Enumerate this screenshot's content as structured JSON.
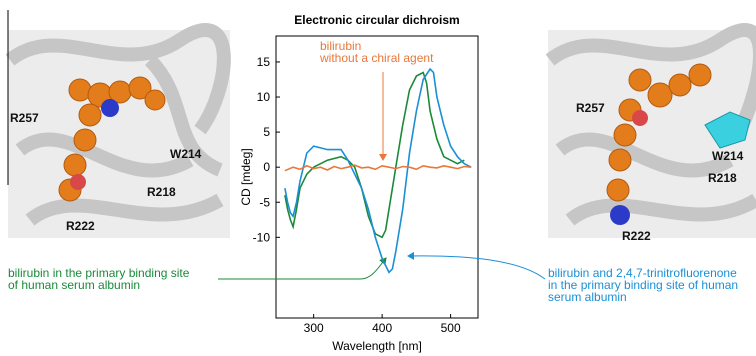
{
  "chart_data": {
    "type": "line",
    "title": "Electronic circular dichroism",
    "x_label": "Wavelength [nm]",
    "y_label": "CD [mdeg]",
    "xlim": [
      245,
      540
    ],
    "xticks": [
      300,
      400,
      500
    ],
    "ylim": [
      -21.5,
      18.7
    ],
    "yticks": [
      15,
      10,
      5,
      0,
      -5,
      -10
    ],
    "series": [
      {
        "label": [
          "bilirubin in the primary binding site",
          " of human serum albumin"
        ],
        "color": "#1a8a3a",
        "x": [
          258,
          262,
          266,
          270,
          275,
          280,
          290,
          300,
          320,
          340,
          350,
          360,
          370,
          380,
          390,
          400,
          405,
          410,
          420,
          430,
          440,
          450,
          460,
          465,
          470,
          480,
          490,
          500,
          510,
          520
        ],
        "values": [
          -4,
          -6,
          -7.5,
          -8.5,
          -6,
          -3,
          -1,
          0,
          1,
          1.5,
          1,
          0,
          -3,
          -7,
          -9.5,
          -10,
          -9,
          -6,
          0,
          6,
          11,
          13,
          13.5,
          12,
          8,
          4,
          1.5,
          1,
          0.5,
          1
        ]
      },
      {
        "label": [
          "bilirubin and 2,4,7-trinitrofluorenone",
          "in the primary binding site of human",
          "serum albumin"
        ],
        "color": "#1b8fd6",
        "x": [
          258,
          262,
          266,
          270,
          275,
          280,
          290,
          300,
          320,
          340,
          350,
          360,
          370,
          380,
          390,
          400,
          410,
          415,
          420,
          430,
          440,
          450,
          460,
          470,
          475,
          480,
          490,
          500,
          510,
          520,
          530
        ],
        "values": [
          -3,
          -5,
          -6.5,
          -7,
          -5,
          -2,
          2,
          3,
          2.5,
          2.5,
          1,
          -1,
          -3,
          -6,
          -10,
          -13,
          -15,
          -14.5,
          -12,
          -6,
          2,
          8,
          12.5,
          14,
          13.5,
          10,
          6,
          3,
          1.5,
          0.5,
          0
        ]
      },
      {
        "label": [
          "bilirubin",
          "without a chiral agent"
        ],
        "color": "#e8783a",
        "x": [
          258,
          270,
          280,
          290,
          300,
          310,
          320,
          330,
          340,
          350,
          360,
          370,
          380,
          390,
          400,
          410,
          420,
          430,
          440,
          450,
          460,
          470,
          480,
          490,
          500,
          510,
          520,
          530
        ],
        "values": [
          -0.5,
          0,
          -0.3,
          0.2,
          -0.2,
          0,
          -0.4,
          0.1,
          -0.2,
          0,
          0.3,
          -0.1,
          0,
          -0.3,
          0.2,
          0,
          -0.2,
          0.1,
          0,
          -0.3,
          0.2,
          0,
          -0.1,
          0.2,
          0,
          -0.2,
          0.1,
          0
        ]
      }
    ]
  },
  "structures": {
    "left": {
      "residues": [
        "R257",
        "W214",
        "R218",
        "R222"
      ]
    },
    "right": {
      "residues": [
        "R257",
        "W214",
        "R218",
        "R222"
      ]
    }
  }
}
